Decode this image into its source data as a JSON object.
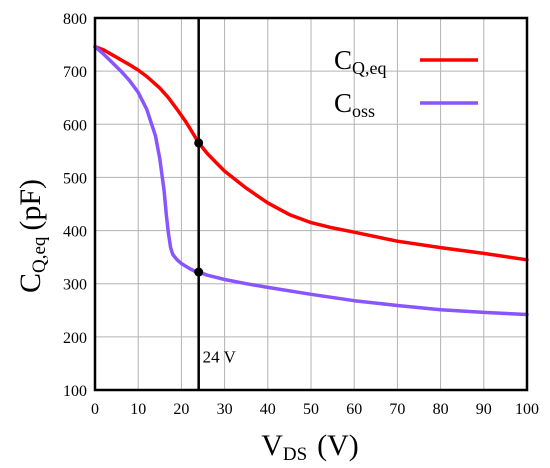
{
  "chart_data": {
    "type": "line",
    "xlabel": {
      "main": "V",
      "sub": "DS",
      "unit": "(V)"
    },
    "ylabel": {
      "main": "C",
      "sub": "Q,eq",
      "unit": "(pF)"
    },
    "xlim": [
      0,
      100
    ],
    "ylim": [
      100,
      800
    ],
    "xticks": [
      0,
      10,
      20,
      30,
      40,
      50,
      60,
      70,
      80,
      90,
      100
    ],
    "yticks": [
      100,
      200,
      300,
      400,
      500,
      600,
      700,
      800
    ],
    "grid": true,
    "legend": {
      "placement": "top-right"
    },
    "series": [
      {
        "name_main": "C",
        "name_sub": "Q,eq",
        "color": "#ff0000",
        "x": [
          0,
          2,
          5,
          8,
          10,
          12,
          15,
          17,
          19,
          21,
          22,
          24,
          26,
          28,
          30,
          35,
          40,
          45,
          50,
          55,
          60,
          70,
          80,
          90,
          100
        ],
        "y": [
          746,
          740,
          726,
          712,
          702,
          690,
          668,
          650,
          628,
          605,
          592,
          565,
          545,
          528,
          512,
          480,
          452,
          430,
          415,
          405,
          397,
          380,
          368,
          357,
          345
        ]
      },
      {
        "name_main": "C",
        "name_sub": "oss",
        "color": "#8855ff",
        "x": [
          0,
          2,
          4,
          6,
          8,
          10,
          12,
          14,
          15,
          16,
          16.5,
          17,
          17.5,
          18,
          19,
          20,
          21,
          22,
          23,
          24,
          26,
          28,
          30,
          35,
          40,
          50,
          60,
          70,
          80,
          90,
          100
        ],
        "y": [
          746,
          732,
          716,
          700,
          682,
          660,
          628,
          578,
          535,
          475,
          430,
          395,
          368,
          355,
          345,
          338,
          333,
          328,
          324,
          322,
          316,
          312,
          308,
          300,
          293,
          280,
          268,
          259,
          251,
          246,
          242
        ]
      }
    ],
    "annotation": {
      "x": 24,
      "label": "24 V",
      "markers": [
        {
          "x": 24,
          "y": 565
        },
        {
          "x": 24,
          "y": 322
        }
      ]
    }
  }
}
